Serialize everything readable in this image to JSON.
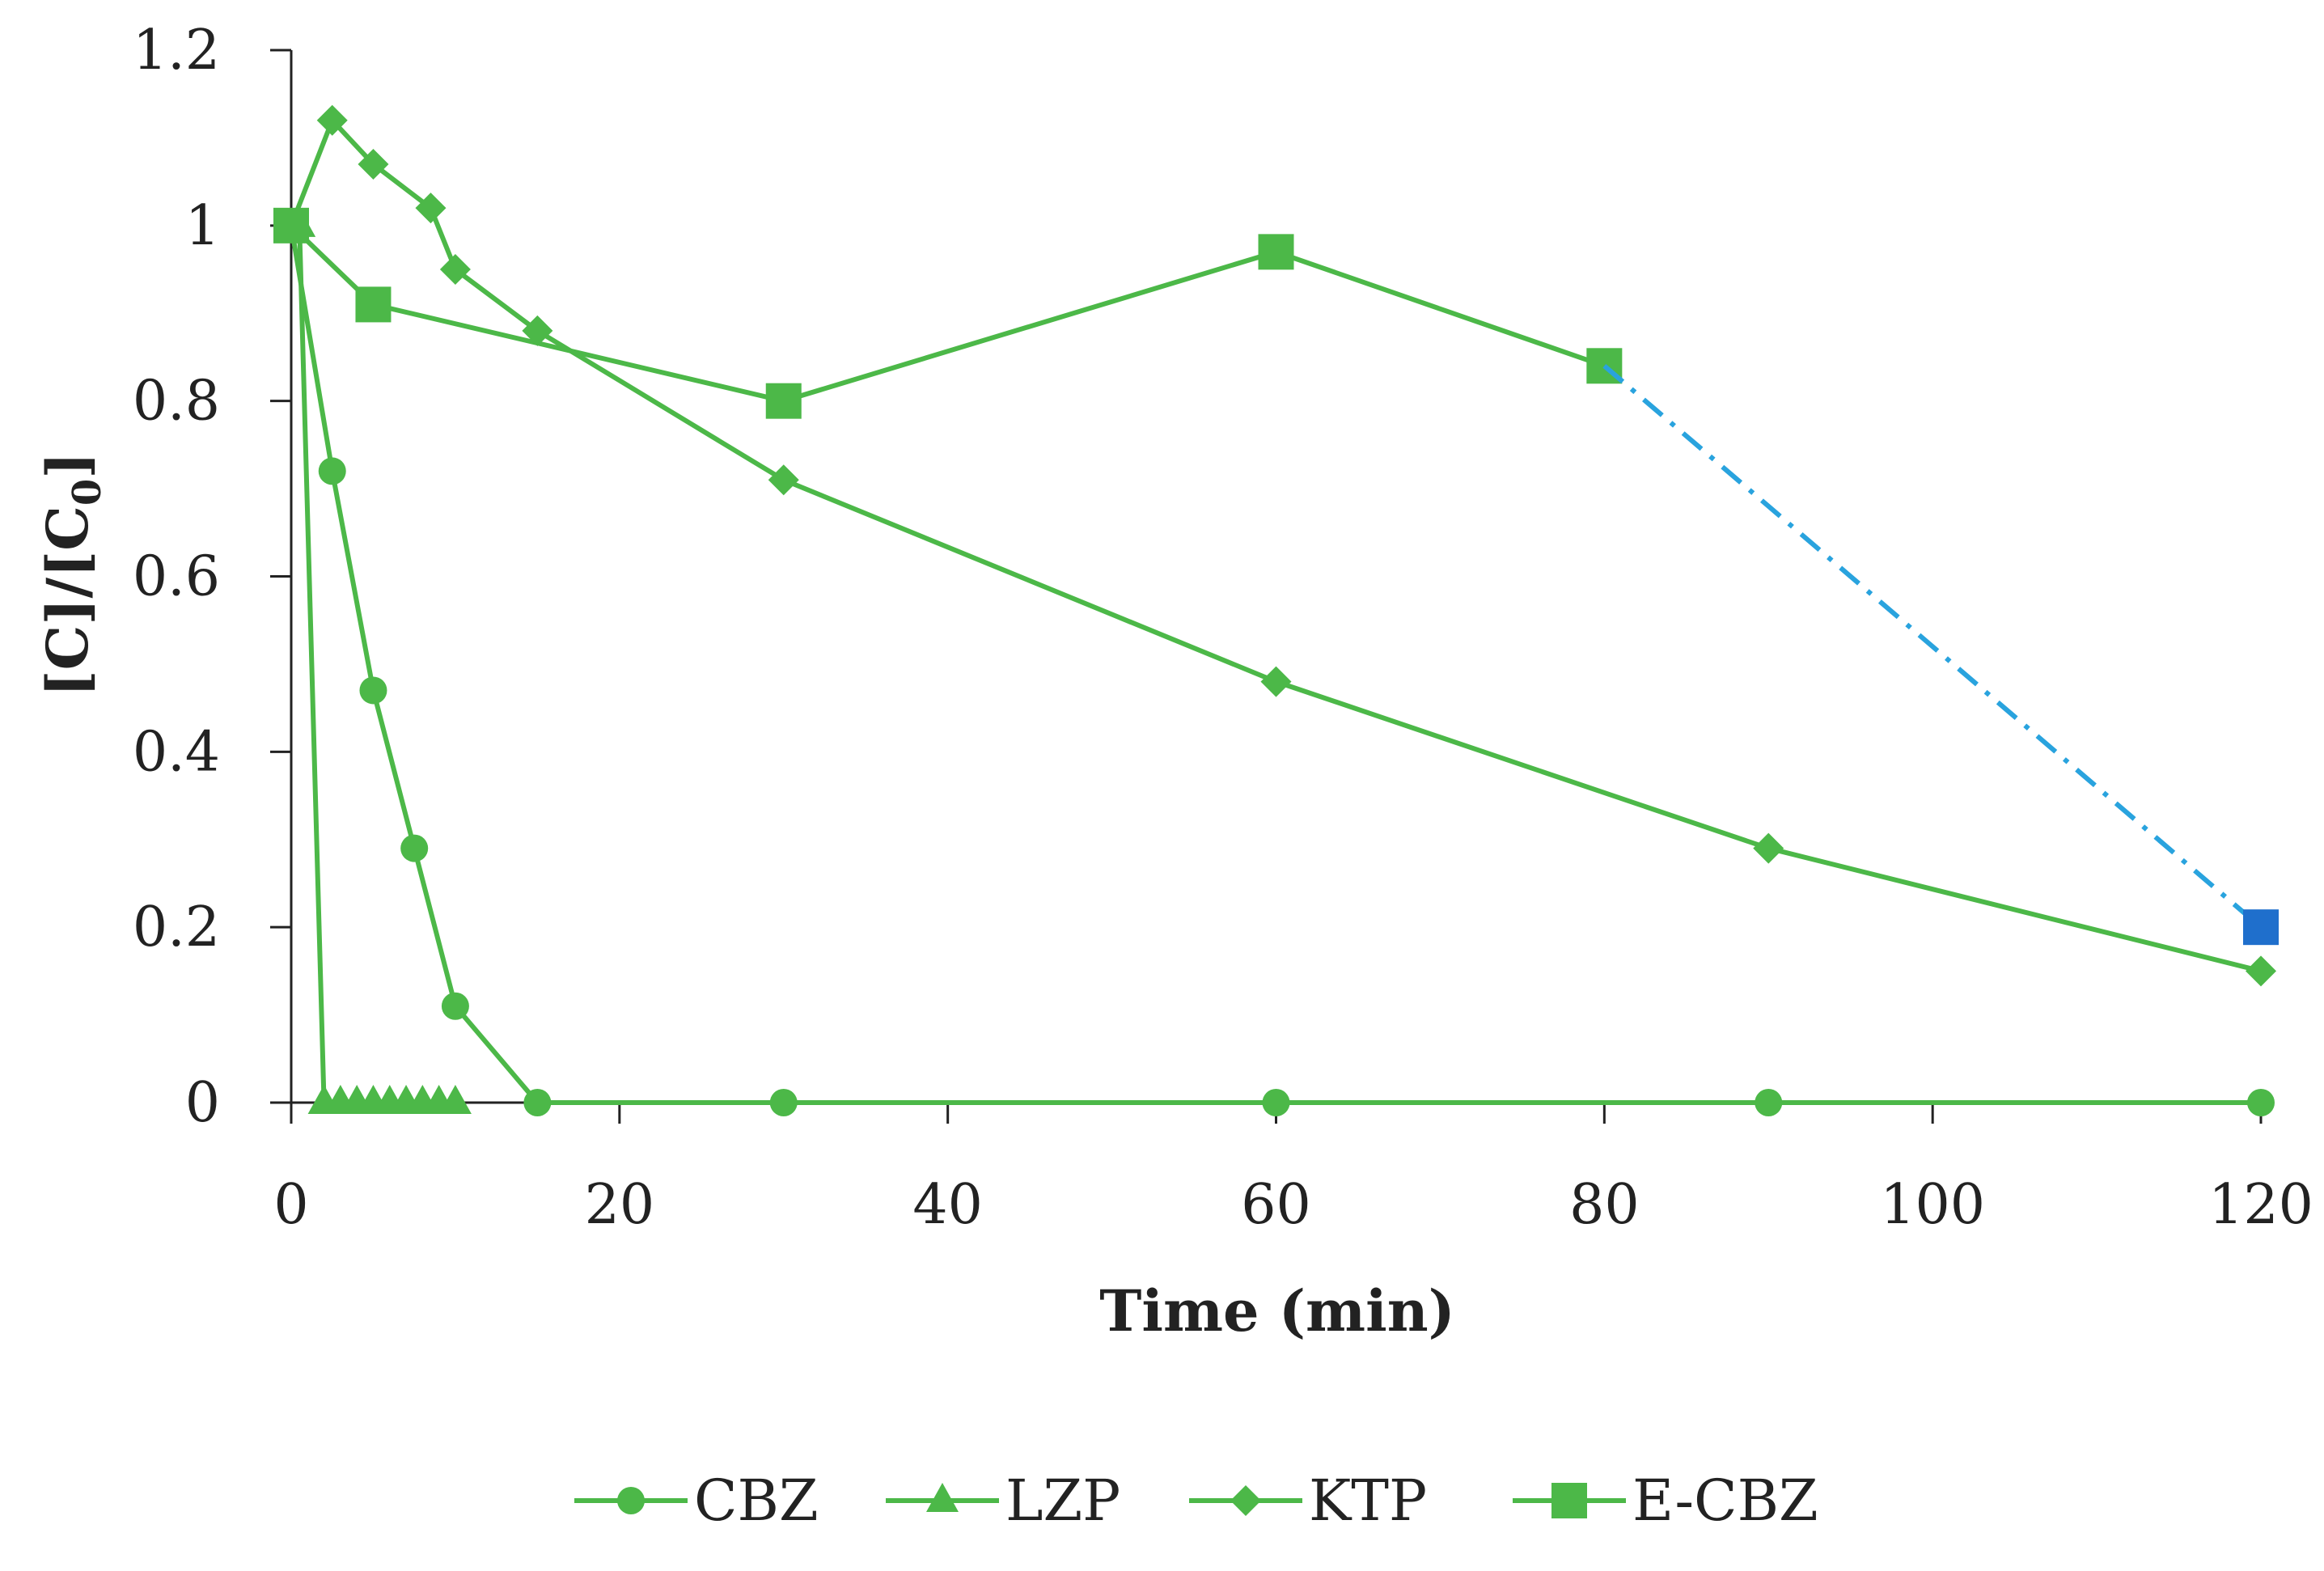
{
  "chart_data": {
    "type": "line",
    "title": "",
    "xlabel": "Time (min)",
    "ylabel_main": "[C]/[C",
    "ylabel_sub": "0",
    "ylabel_end": "]",
    "xlim": [
      0,
      120
    ],
    "ylim": [
      0,
      1.2
    ],
    "x_ticks": [
      0,
      20,
      40,
      60,
      80,
      100,
      120
    ],
    "x_tick_labels": [
      "0",
      "20",
      "40",
      "60",
      "80",
      "100",
      "120"
    ],
    "y_ticks": [
      0,
      0.2,
      0.4,
      0.6,
      0.8,
      1,
      1.2
    ],
    "y_tick_labels": [
      "0",
      "0.2",
      "0.4",
      "0.6",
      "0.8",
      "1",
      "1.2"
    ],
    "grid": false,
    "legend_position": "bottom",
    "colors": {
      "series": "#4cb848",
      "extrapolation": "#29a3de",
      "extrapolated_point": "#1f6fcc",
      "axis": "#222222"
    },
    "series": [
      {
        "name": "CBZ",
        "marker": "circle",
        "x": [
          0,
          2.5,
          5,
          7.5,
          10,
          15,
          30,
          60,
          90,
          120
        ],
        "y": [
          1,
          0.72,
          0.47,
          0.29,
          0.11,
          0.0,
          0,
          0,
          0,
          0
        ]
      },
      {
        "name": "LZP",
        "marker": "triangle",
        "x": [
          0,
          0.5,
          2,
          3,
          4,
          5,
          6,
          7,
          8,
          9,
          10
        ],
        "y": [
          1,
          1,
          0,
          0,
          0,
          0,
          0,
          0,
          0,
          0,
          0
        ]
      },
      {
        "name": "KTP",
        "marker": "diamond",
        "x": [
          0,
          2.5,
          5,
          8.5,
          10,
          15,
          30,
          60,
          90,
          120
        ],
        "y": [
          1,
          1.12,
          1.07,
          1.02,
          0.95,
          0.88,
          0.71,
          0.48,
          0.29,
          0.15
        ]
      },
      {
        "name": "E-CBZ",
        "marker": "square",
        "x": [
          0,
          5,
          30,
          60,
          80
        ],
        "y": [
          1,
          0.91,
          0.8,
          0.97,
          0.84
        ]
      }
    ],
    "extrapolation": {
      "series": "E-CBZ",
      "from": [
        80,
        0.84
      ],
      "to": [
        120,
        0.2
      ],
      "style": "dash-dot"
    }
  }
}
